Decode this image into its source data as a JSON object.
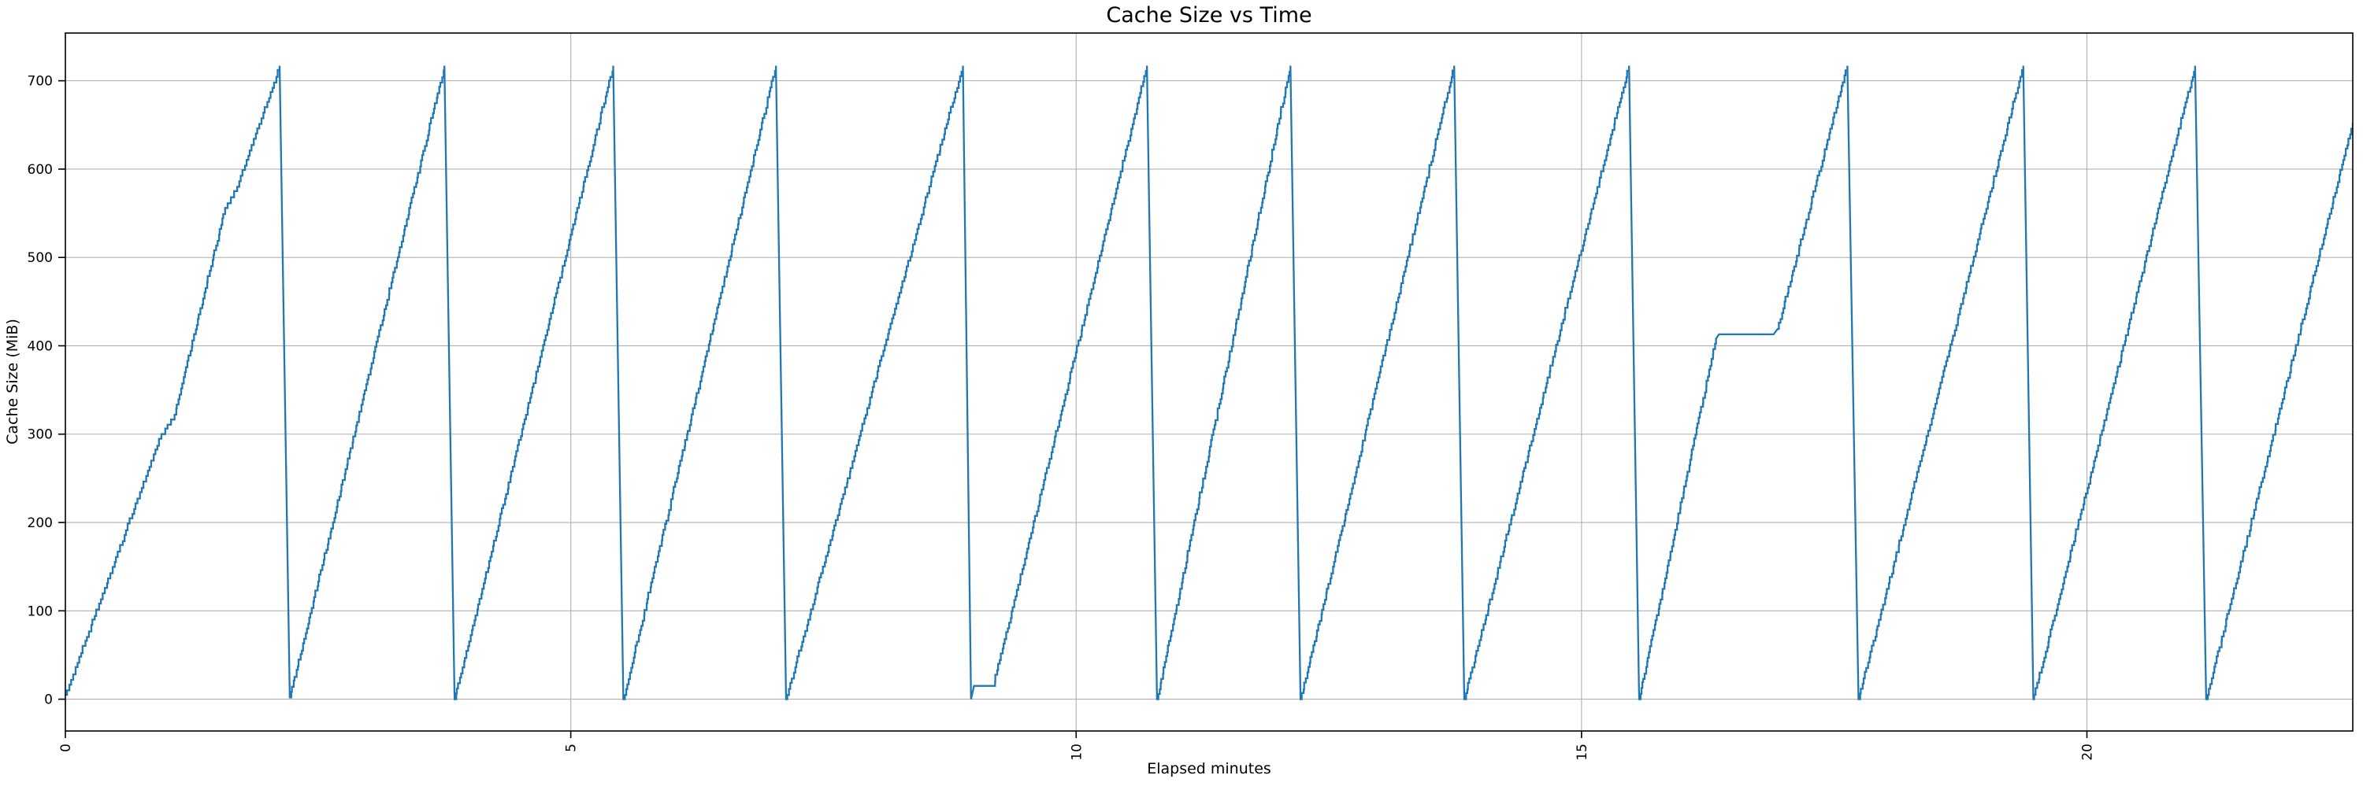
{
  "chart_data": {
    "type": "line",
    "title": "Cache Size vs Time",
    "xlabel": "Elapsed minutes",
    "ylabel": "Cache Size (MiB)",
    "xlim": [
      0,
      22.63
    ],
    "ylim": [
      -36,
      754
    ],
    "xticks": [
      0,
      5,
      10,
      15,
      20
    ],
    "xtick_labels": [
      "0",
      "5",
      "10",
      "15",
      "20"
    ],
    "xtick_label_rotation_deg": -90,
    "yticks": [
      0,
      100,
      200,
      300,
      400,
      500,
      600,
      700
    ],
    "ytick_labels": [
      "0",
      "100",
      "200",
      "300",
      "400",
      "500",
      "600",
      "700"
    ],
    "grid": true,
    "legend": "none",
    "line_color": "#1f77b4",
    "grid_color": "#b0b0b0",
    "spine_color": "#000000",
    "peak_value_mib": 717,
    "trough_value_mib": 0,
    "series": [
      {
        "name": "cache_size_mib",
        "style": "staircase-sawtooth",
        "segments_note": "each segment = [x0_min, y0_mib, x1_min, y1_mib, mode]; mode s=staircase ramp, l=straight line",
        "segments": [
          [
            0.0,
            5,
            0.95,
            300,
            "s"
          ],
          [
            0.95,
            300,
            1.08,
            322,
            "s"
          ],
          [
            1.08,
            322,
            1.58,
            556,
            "s"
          ],
          [
            1.58,
            556,
            1.7,
            580,
            "s"
          ],
          [
            1.7,
            580,
            2.12,
            717,
            "s"
          ],
          [
            2.12,
            717,
            2.22,
            2,
            "l"
          ],
          [
            2.22,
            2,
            3.75,
            717,
            "s"
          ],
          [
            3.75,
            717,
            3.85,
            0,
            "l"
          ],
          [
            3.85,
            0,
            5.42,
            717,
            "s"
          ],
          [
            5.42,
            717,
            5.52,
            0,
            "l"
          ],
          [
            5.52,
            0,
            7.03,
            717,
            "s"
          ],
          [
            7.03,
            717,
            7.13,
            0,
            "l"
          ],
          [
            7.13,
            0,
            8.88,
            717,
            "s"
          ],
          [
            8.88,
            717,
            8.96,
            0,
            "l"
          ],
          [
            8.96,
            0,
            8.99,
            15,
            "l"
          ],
          [
            8.99,
            15,
            9.18,
            15,
            "l"
          ],
          [
            9.18,
            15,
            10.7,
            717,
            "s"
          ],
          [
            10.7,
            717,
            10.8,
            0,
            "l"
          ],
          [
            10.8,
            0,
            12.12,
            717,
            "s"
          ],
          [
            12.12,
            717,
            12.22,
            0,
            "l"
          ],
          [
            12.22,
            0,
            13.74,
            717,
            "s"
          ],
          [
            13.74,
            717,
            13.84,
            0,
            "l"
          ],
          [
            13.84,
            0,
            15.47,
            717,
            "s"
          ],
          [
            15.47,
            717,
            15.57,
            0,
            "l"
          ],
          [
            15.57,
            0,
            16.33,
            408,
            "s"
          ],
          [
            16.33,
            408,
            16.36,
            413,
            "l"
          ],
          [
            16.36,
            413,
            16.9,
            413,
            "l"
          ],
          [
            16.9,
            413,
            16.94,
            419,
            "l"
          ],
          [
            16.94,
            419,
            17.63,
            717,
            "s"
          ],
          [
            17.63,
            717,
            17.74,
            0,
            "l"
          ],
          [
            17.74,
            0,
            19.37,
            717,
            "s"
          ],
          [
            19.37,
            717,
            19.47,
            0,
            "l"
          ],
          [
            19.47,
            0,
            21.07,
            717,
            "s"
          ],
          [
            21.07,
            717,
            21.18,
            0,
            "l"
          ],
          [
            21.18,
            0,
            22.63,
            652,
            "s"
          ]
        ]
      }
    ]
  }
}
